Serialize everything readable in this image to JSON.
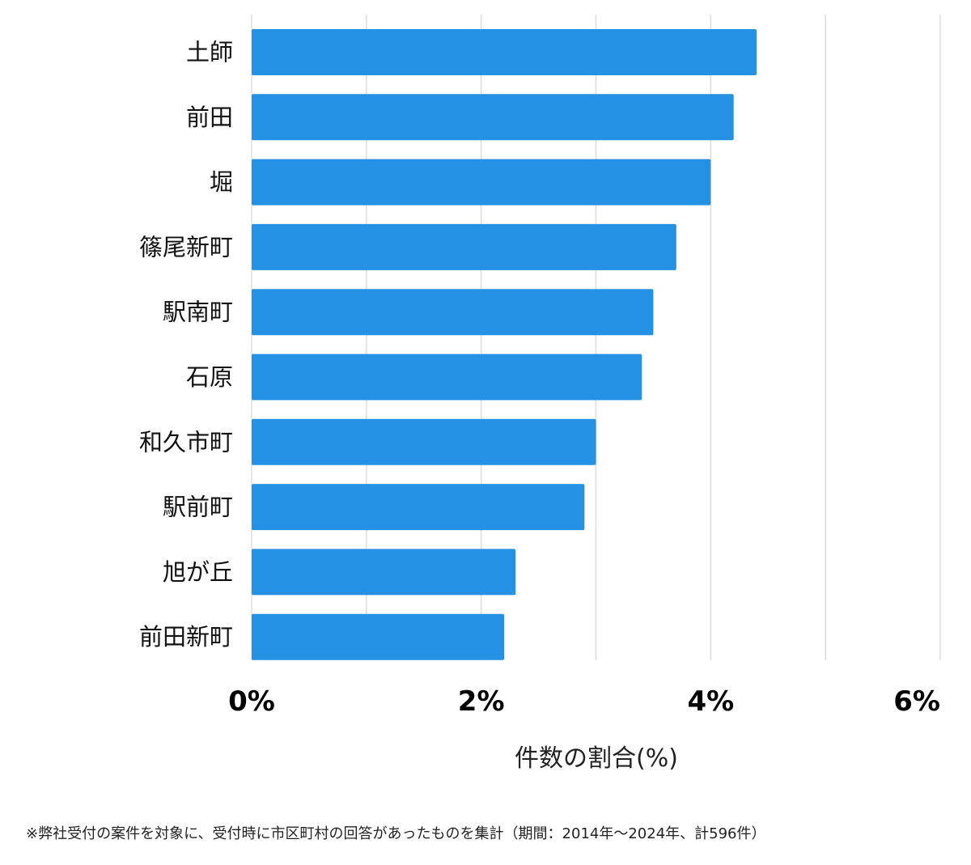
{
  "chart_data": {
    "type": "bar",
    "orientation": "horizontal",
    "categories": [
      "土師",
      "前田",
      "堀",
      "篠尾新町",
      "駅南町",
      "石原",
      "和久市町",
      "駅前町",
      "旭が丘",
      "前田新町"
    ],
    "values": [
      4.4,
      4.2,
      4.0,
      3.7,
      3.5,
      3.4,
      3.0,
      2.9,
      2.3,
      2.2
    ],
    "xlim": [
      0,
      6
    ],
    "major_ticks": [
      0,
      2,
      4,
      6
    ],
    "tick_labels": [
      "0%",
      "2%",
      "4%",
      "6%"
    ],
    "gridlines": [
      0,
      1,
      2,
      3,
      4,
      5,
      6
    ],
    "grid": true,
    "xlabel": "件数の割合(%)",
    "ylabel": "",
    "title": "",
    "bar_color": "#2491e4",
    "grid_color": "#dddddd"
  },
  "footnote": "※弊社受付の案件を対象に、受付時に市区町村の回答があったものを集計（期間：2014年〜2024年、計596件）"
}
